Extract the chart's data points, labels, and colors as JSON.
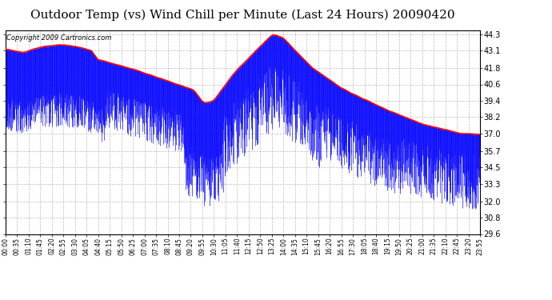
{
  "title": "Outdoor Temp (vs) Wind Chill per Minute (Last 24 Hours) 20090420",
  "copyright": "Copyright 2009 Cartronics.com",
  "yticks": [
    29.6,
    30.8,
    32.0,
    33.3,
    34.5,
    35.7,
    37.0,
    38.2,
    39.4,
    40.6,
    41.8,
    43.1,
    44.3
  ],
  "xtick_labels": [
    "00:00",
    "00:35",
    "01:10",
    "01:45",
    "02:20",
    "02:55",
    "03:30",
    "04:05",
    "04:40",
    "05:15",
    "05:50",
    "06:25",
    "07:00",
    "07:35",
    "08:10",
    "08:45",
    "09:20",
    "09:55",
    "10:30",
    "11:05",
    "11:40",
    "12:15",
    "12:50",
    "13:25",
    "14:00",
    "14:35",
    "15:10",
    "15:45",
    "16:20",
    "16:55",
    "17:30",
    "18:05",
    "18:40",
    "19:15",
    "19:50",
    "20:25",
    "21:00",
    "21:35",
    "22:10",
    "22:45",
    "23:20",
    "23:55"
  ],
  "ymin": 29.6,
  "ymax": 44.3,
  "temp_color": "#FF0000",
  "windchill_color": "#0000FF",
  "bg_color": "#FFFFFF",
  "grid_color": "#AAAAAA",
  "title_fontsize": 11,
  "copyright_fontsize": 6,
  "xtick_fontsize": 5.5,
  "ytick_fontsize": 7
}
